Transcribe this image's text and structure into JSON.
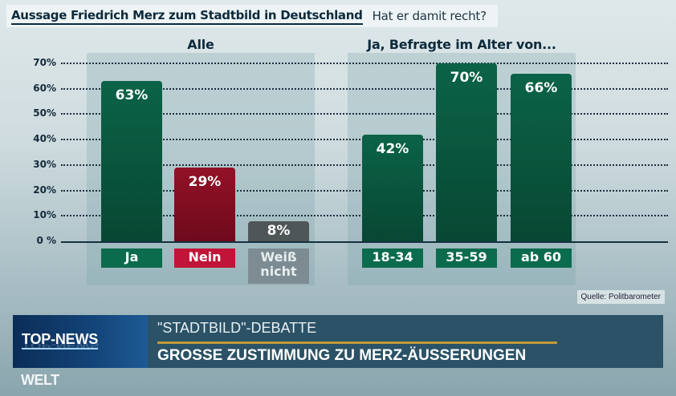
{
  "headline": {
    "main": "Aussage Friedrich Merz zum Stadtbild in Deutschland",
    "sub": "Hat er damit recht?"
  },
  "chart_data": {
    "type": "bar",
    "ylabel": "",
    "ylim": [
      0,
      70
    ],
    "yticks": [
      "0 %",
      "10%",
      "20%",
      "30%",
      "40%",
      "50%",
      "60%",
      "70%"
    ],
    "grid": true,
    "groups": [
      {
        "title": "Alle",
        "categories": [
          "Ja",
          "Nein",
          "Weiß nicht"
        ],
        "values": [
          63,
          29,
          8
        ],
        "labels": [
          "63%",
          "29%",
          "8%"
        ],
        "colors": [
          "#0b6347",
          "#931127",
          "#4f5658"
        ]
      },
      {
        "title": "Ja, Befragte im Alter von...",
        "categories": [
          "18-34",
          "35-59",
          "ab 60"
        ],
        "values": [
          42,
          70,
          66
        ],
        "labels": [
          "42%",
          "70%",
          "66%"
        ],
        "colors": [
          "#0b6347",
          "#0b6347",
          "#0b6347"
        ]
      }
    ]
  },
  "source": "Quelle: Politbarometer",
  "ticker": {
    "badge": "TOP-NEWS",
    "topline": "\"STADTBILD\"-DEBATTE",
    "headline": "GROSSE ZUSTIMMUNG ZU MERZ-ÄUSSERUNGEN"
  },
  "logo": "WELT"
}
